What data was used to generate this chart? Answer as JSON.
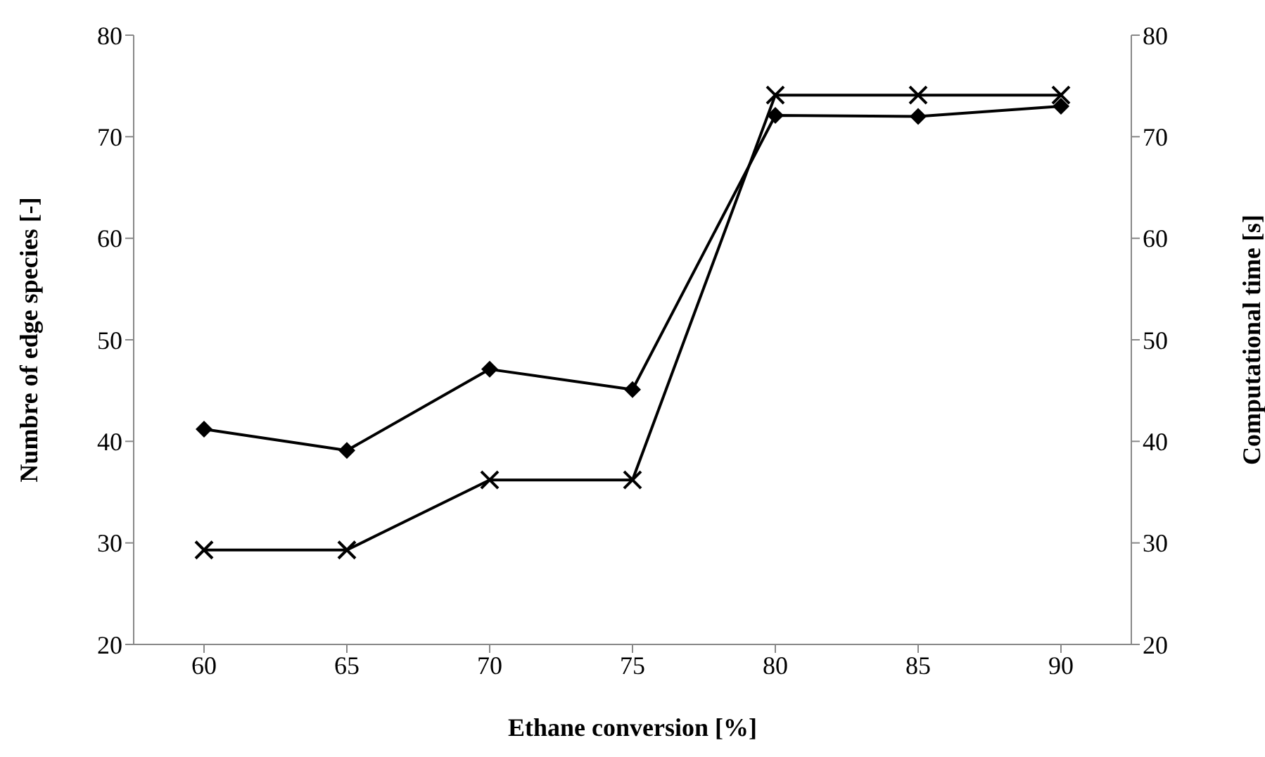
{
  "chart_data": {
    "type": "line",
    "xlabel": "Ethane conversion [%]",
    "ylabel": "Numbre of edge species [-]",
    "y2label": "Computational time [s]",
    "categories": [
      "60",
      "65",
      "70",
      "75",
      "80",
      "85",
      "90"
    ],
    "series": [
      {
        "color": "#000000",
        "marker": "diamond",
        "values": [
          41.2,
          39.1,
          47.1,
          45.1,
          72.1,
          72,
          73
        ]
      },
      {
        "color": "#000000",
        "marker": "cross",
        "axis": "y2",
        "values": [
          29.3,
          29.3,
          36.2,
          36.2,
          74.1,
          74.1,
          74.1
        ]
      }
    ],
    "ylim": [
      20,
      80
    ],
    "yticks": [
      20,
      30,
      40,
      50,
      60,
      70,
      80
    ],
    "y2lim": [
      20,
      80
    ],
    "y2ticks": [
      20,
      30,
      40,
      50,
      60,
      70,
      80
    ],
    "grid": false,
    "legend": false
  }
}
